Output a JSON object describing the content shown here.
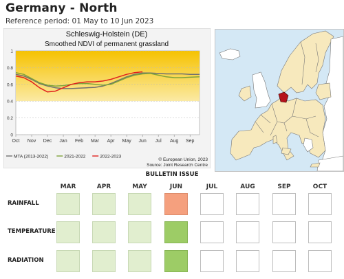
{
  "page": {
    "title": "Germany - North",
    "reference_period": "Reference period: 01 May to 10 Jun 2023"
  },
  "chart_data": {
    "type": "line",
    "title": "Schleswig-Holstein (DE)",
    "subtitle": "Smoothed NDVI of permanent grassland",
    "x_ticks": [
      "Oct",
      "Nov",
      "Dec",
      "Jan",
      "Feb",
      "Mar",
      "Apr",
      "May",
      "Jun",
      "Jul",
      "Aug",
      "Sep"
    ],
    "ylim": [
      0,
      1
    ],
    "y_ticks": [
      "0",
      "0.2",
      "0.4",
      "0.6",
      "0.8",
      "1"
    ],
    "grid": "horizontal dashed",
    "legend_position": "bottom-left",
    "series": [
      {
        "name": "MTA (2013-2022)",
        "color": "#707070",
        "x": [
          0,
          0.5,
          1,
          1.5,
          2,
          2.5,
          3,
          3.5,
          4,
          4.5,
          5,
          5.5,
          6,
          6.5,
          7,
          7.5,
          8,
          8.5,
          9,
          9.5,
          10,
          10.5,
          11,
          11.6
        ],
        "values": [
          0.72,
          0.7,
          0.66,
          0.61,
          0.58,
          0.56,
          0.55,
          0.55,
          0.555,
          0.56,
          0.565,
          0.58,
          0.61,
          0.65,
          0.69,
          0.72,
          0.735,
          0.735,
          0.73,
          0.725,
          0.725,
          0.725,
          0.72,
          0.72
        ]
      },
      {
        "name": "2021-2022",
        "color": "#7fa33a",
        "x": [
          0,
          0.5,
          1,
          1.5,
          2,
          2.5,
          3,
          3.5,
          4,
          4.5,
          5,
          5.5,
          6,
          6.5,
          7,
          7.5,
          8,
          8.5,
          9,
          9.5,
          10,
          10.5,
          11,
          11.6
        ],
        "values": [
          0.74,
          0.72,
          0.67,
          0.62,
          0.59,
          0.58,
          0.585,
          0.6,
          0.61,
          0.61,
          0.6,
          0.59,
          0.6,
          0.64,
          0.68,
          0.71,
          0.725,
          0.73,
          0.71,
          0.69,
          0.68,
          0.68,
          0.685,
          0.69
        ]
      },
      {
        "name": "2022-2023",
        "color": "#e0201e",
        "x": [
          0,
          0.5,
          1,
          1.5,
          2,
          2.5,
          3,
          3.5,
          4,
          4.5,
          5,
          5.5,
          6,
          6.5,
          7,
          7.5,
          8
        ],
        "values": [
          0.7,
          0.68,
          0.63,
          0.56,
          0.51,
          0.52,
          0.56,
          0.6,
          0.62,
          0.63,
          0.63,
          0.64,
          0.66,
          0.69,
          0.72,
          0.74,
          0.75
        ]
      }
    ],
    "credits": [
      "© European Union, 2023",
      "Source: Joint Research Centre"
    ],
    "colors": {
      "band_top": "#f6c200",
      "band_bottom": "#fbeaa4",
      "background": "#f3f3f3"
    }
  },
  "map": {
    "highlight_region": "Schleswig-Holstein",
    "colors": {
      "sea": "#d4e8f5",
      "land_eu": "#f7e9bd",
      "land_non_eu": "#ffffff",
      "highlight": "#b5121b"
    }
  },
  "bulletin": {
    "header": "BULLETIN ISSUE",
    "months": [
      "MAR",
      "APR",
      "MAY",
      "JUN",
      "JUL",
      "AUG",
      "SEP",
      "OCT"
    ],
    "rows": [
      {
        "label": "RAINFALL",
        "cells": [
          "light",
          "light",
          "light",
          "orange",
          "empty",
          "empty",
          "empty",
          "empty"
        ]
      },
      {
        "label": "TEMPERATURE",
        "cells": [
          "light",
          "light",
          "light",
          "green",
          "empty",
          "empty",
          "empty",
          "empty"
        ]
      },
      {
        "label": "RADIATION",
        "cells": [
          "light",
          "light",
          "light",
          "green",
          "empty",
          "empty",
          "empty",
          "empty"
        ]
      }
    ]
  }
}
